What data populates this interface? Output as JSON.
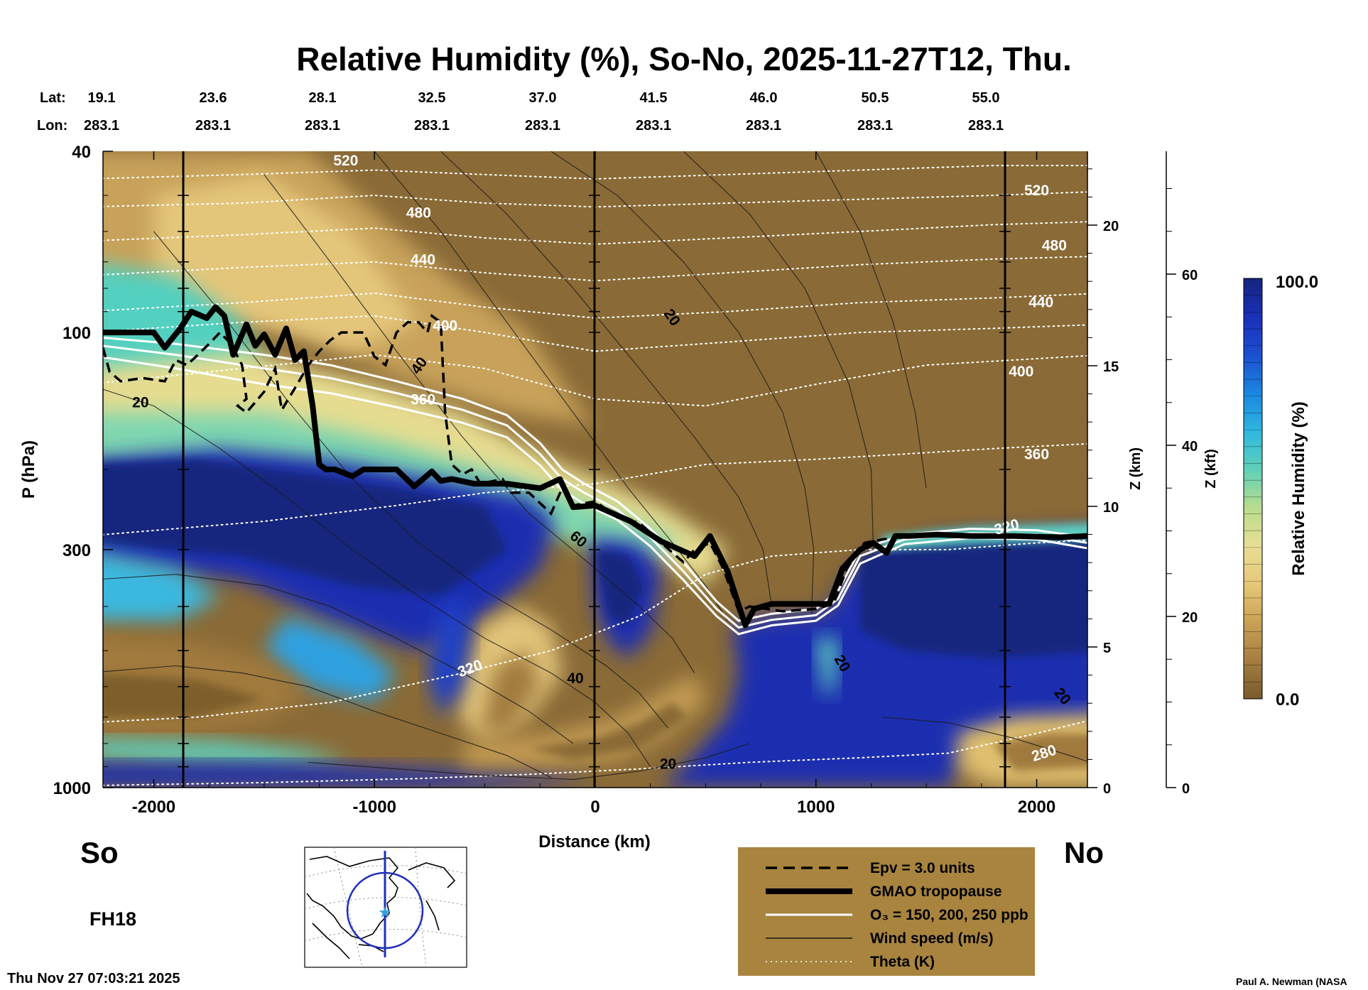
{
  "title": "Relative Humidity (%), So-No, 2025-11-27T12, Thu.",
  "lat_label": "Lat:",
  "lon_label": "Lon:",
  "latlon_columns": [
    {
      "lat": "19.1",
      "lon": "283.1"
    },
    {
      "lat": "23.6",
      "lon": "283.1"
    },
    {
      "lat": "28.1",
      "lon": "283.1"
    },
    {
      "lat": "32.5",
      "lon": "283.1"
    },
    {
      "lat": "37.0",
      "lon": "283.1"
    },
    {
      "lat": "41.5",
      "lon": "283.1"
    },
    {
      "lat": "46.0",
      "lon": "283.1"
    },
    {
      "lat": "50.5",
      "lon": "283.1"
    },
    {
      "lat": "55.0",
      "lon": "283.1"
    }
  ],
  "south_label": "So",
  "north_label": "No",
  "forecast_hour": "FH18",
  "timestamp": "Thu Nov 27 07:03:21 2025",
  "credit": "Paul A. Newman (NASA",
  "colors": {
    "moist": "#1f2fc0",
    "dry": "#8a6a38",
    "legend_box": "#a8843f"
  },
  "legend": {
    "items": [
      {
        "label": "Epv = 3.0 units",
        "style": "dashed-black"
      },
      {
        "label": "GMAO tropopause",
        "style": "thick-black"
      },
      {
        "label": "O₃ = 150, 200, 250 ppb",
        "style": "white"
      },
      {
        "label": "Wind speed (m/s)",
        "style": "thin-black"
      },
      {
        "label": "Theta (K)",
        "style": "dotted-white"
      }
    ]
  },
  "colorbar": {
    "title": "Relative Humidity (%)",
    "max_label": "100.0",
    "min_label": "0.0",
    "stops": [
      "#7a5a2c",
      "#a57e40",
      "#c9a255",
      "#e6c878",
      "#e8de95",
      "#b8dd8e",
      "#5fd0b8",
      "#2fb7e0",
      "#1a86e0",
      "#1c4fd0",
      "#1a2fb8",
      "#15257e"
    ]
  },
  "chart_data": {
    "type": "heatmap",
    "title": "Relative Humidity (%), So-No, 2025-11-27T12, Thu.",
    "xlabel": "Distance (km)",
    "ylabel": "P (hPa)",
    "xlim": [
      -2230,
      2230
    ],
    "ylim": [
      1000,
      40
    ],
    "y_scale": "log",
    "x_ticks": [
      -2000,
      -1000,
      0,
      1000,
      2000
    ],
    "y_ticks": [
      40,
      100,
      300,
      1000
    ],
    "z_km_label": "Z (km)",
    "z_km_ticks": [
      0,
      5,
      10,
      15,
      20
    ],
    "z_kft_label": "Z (kft)",
    "z_kft_ticks": [
      0,
      20,
      40,
      60
    ],
    "tropopause_hPa": {
      "x": [
        -2230,
        -2000,
        -1950,
        -1880,
        -1830,
        -1760,
        -1720,
        -1680,
        -1640,
        -1580,
        -1540,
        -1500,
        -1450,
        -1400,
        -1360,
        -1320,
        -1280,
        -1250,
        -1220,
        -1180,
        -1100,
        -1050,
        -900,
        -820,
        -740,
        -700,
        -650,
        -550,
        -400,
        -250,
        -160,
        -100,
        0,
        160,
        300,
        450,
        520,
        600,
        680,
        720,
        800,
        900,
        1060,
        1120,
        1200,
        1260,
        1320,
        1360,
        1420,
        1550,
        1700,
        1900,
        2100,
        2230
      ],
      "p": [
        100,
        100,
        108,
        98,
        90,
        93,
        88,
        92,
        112,
        96,
        107,
        101,
        112,
        98,
        115,
        110,
        145,
        195,
        200,
        200,
        207,
        200,
        200,
        218,
        202,
        212,
        210,
        215,
        215,
        220,
        210,
        242,
        240,
        260,
        288,
        310,
        280,
        335,
        440,
        405,
        395,
        395,
        395,
        330,
        300,
        290,
        305,
        280,
        280,
        278,
        280,
        280,
        282,
        280
      ]
    },
    "theta_K_labels": [
      280,
      320,
      360,
      400,
      440,
      480,
      520
    ],
    "wind_speed_ms_labels": [
      20,
      40,
      60
    ],
    "regions": [
      {
        "name": "moist upper troposphere south of jet",
        "x": [
          -2230,
          -150
        ],
        "p": [
          200,
          500
        ],
        "rh": "high"
      },
      {
        "name": "dry subsidence band",
        "x": [
          -2230,
          -900
        ],
        "p": [
          500,
          800
        ],
        "rh": "low"
      },
      {
        "name": "dry stratosphere north",
        "x": [
          0,
          2230
        ],
        "p": [
          40,
          300
        ],
        "rh": "low"
      },
      {
        "name": "moist troposphere north",
        "x": [
          650,
          2230
        ],
        "p": [
          320,
          1000
        ],
        "rh": "high"
      }
    ]
  }
}
